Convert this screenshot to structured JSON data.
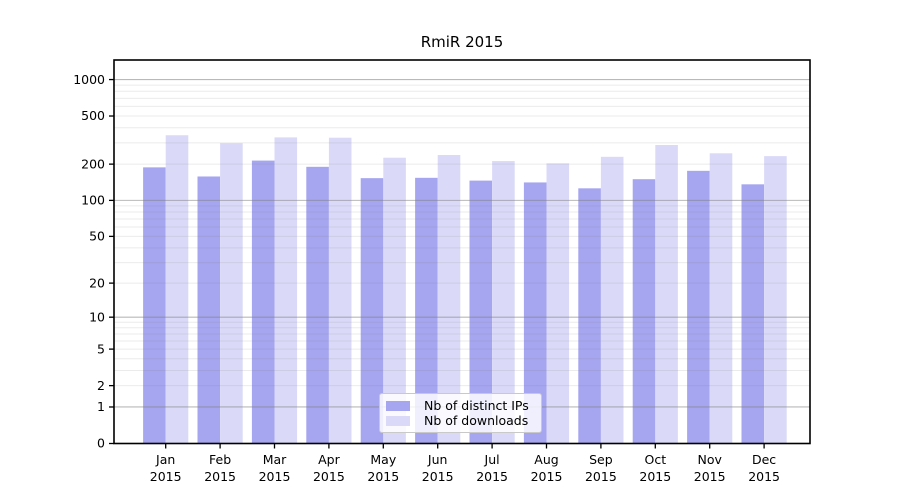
{
  "chart_data": {
    "type": "bar",
    "title": "RmiR 2015",
    "categories": [
      "Jan 2015",
      "Feb 2015",
      "Mar 2015",
      "Apr 2015",
      "May 2015",
      "Jun 2015",
      "Jul 2015",
      "Aug 2015",
      "Sep 2015",
      "Oct 2015",
      "Nov 2015",
      "Dec 2015"
    ],
    "series": [
      {
        "name": "Nb of distinct IPs",
        "color": "#a5a5f0",
        "values": [
          188,
          158,
          214,
          190,
          153,
          154,
          146,
          141,
          126,
          150,
          176,
          136
        ]
      },
      {
        "name": "Nb of downloads",
        "color": "#dadaf8",
        "values": [
          347,
          298,
          333,
          331,
          226,
          238,
          212,
          203,
          230,
          288,
          246,
          233
        ]
      }
    ],
    "y_scale": "log10(1+x)",
    "y_ticks": [
      0,
      1,
      2,
      5,
      10,
      20,
      50,
      100,
      200,
      500,
      1000
    ],
    "ylim": [
      0,
      1450
    ],
    "xlabel": "",
    "ylabel": "",
    "grid": {
      "major_at": [
        1,
        10,
        100,
        1000
      ],
      "minor": "2-9 per decade",
      "on": true
    },
    "legend_position": "bottom-center-inside",
    "axis_color": "#000000",
    "grid_color": "#808080",
    "text_color": "#000000"
  }
}
